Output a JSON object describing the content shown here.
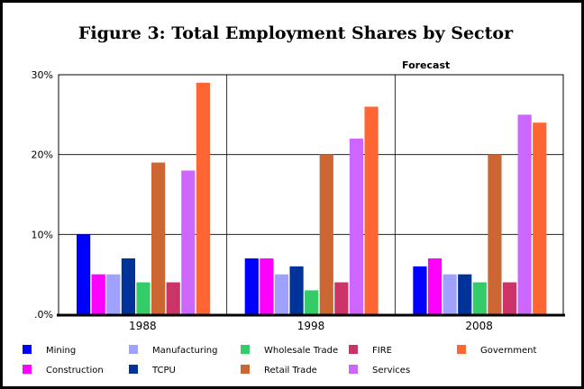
{
  "chart_data": {
    "type": "bar",
    "title": "Figure 3:  Total Employment Shares by Sector",
    "annotation": "Forecast",
    "categories": [
      "1988",
      "1998",
      "2008"
    ],
    "y_ticks": [
      ".0%",
      "10%",
      "20%",
      "30%"
    ],
    "ylim": [
      0,
      30
    ],
    "y_unit": "%",
    "grid": true,
    "legend_position": "bottom",
    "series": [
      {
        "name": "Mining",
        "color": "#0000ff",
        "values": [
          10,
          7,
          6
        ]
      },
      {
        "name": "Construction",
        "color": "#ff00ff",
        "values": [
          5,
          7,
          7
        ]
      },
      {
        "name": "Manufacturing",
        "color": "#a0a0ff",
        "values": [
          5,
          5,
          5
        ]
      },
      {
        "name": "TCPU",
        "color": "#003399",
        "values": [
          7,
          6,
          5
        ]
      },
      {
        "name": "Wholesale Trade",
        "color": "#33cc66",
        "values": [
          4,
          3,
          4
        ]
      },
      {
        "name": "Retail Trade",
        "color": "#cc6633",
        "values": [
          19,
          20,
          20
        ]
      },
      {
        "name": "FIRE",
        "color": "#cc3366",
        "values": [
          4,
          4,
          4
        ]
      },
      {
        "name": "Services",
        "color": "#cc66ff",
        "values": [
          18,
          22,
          25
        ]
      },
      {
        "name": "Government",
        "color": "#ff6633",
        "values": [
          29,
          26,
          24
        ]
      }
    ]
  }
}
